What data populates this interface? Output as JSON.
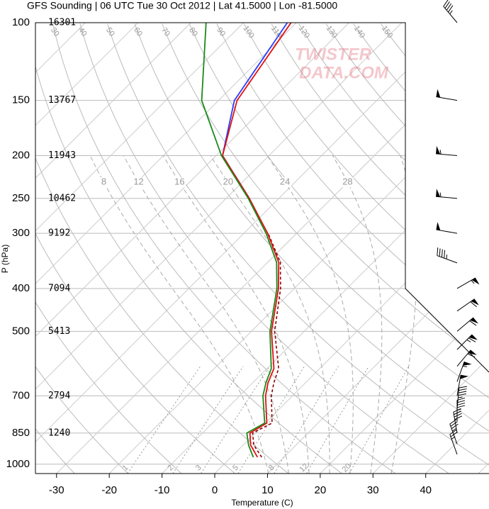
{
  "chart_data": {
    "type": "skewt",
    "title": "GFS Sounding | 06 UTC Tue 30 Oct 2012 | Lat 41.5000 | Lon -81.5000",
    "xlabel": "Temperature (C)",
    "ylabel": "P (hPa)",
    "watermark": [
      "TWISTER",
      "DATA.COM"
    ],
    "xlim": [
      -34,
      52
    ],
    "ylim": [
      1050,
      100
    ],
    "log_y": true,
    "grid": true,
    "xticks": [
      -30,
      -20,
      -10,
      0,
      10,
      20,
      30,
      40
    ],
    "yticks": [
      100,
      150,
      200,
      250,
      300,
      400,
      500,
      700,
      850,
      1000
    ],
    "height_labels": [
      16301,
      13767,
      11943,
      10462,
      9192,
      7094,
      5413,
      2794,
      1240,
      null
    ],
    "isotherms": [
      -110,
      -100,
      -90,
      -80,
      -70,
      -60,
      -50,
      -40,
      -30,
      -20,
      -10,
      0,
      10,
      20,
      30,
      40,
      50
    ],
    "dry_adiabats": [
      -30,
      -20,
      -10,
      0,
      10,
      20,
      30,
      40,
      50,
      60,
      70,
      80,
      90,
      100,
      110,
      120,
      130,
      140,
      150,
      160
    ],
    "moist_adiabats": [
      8,
      12,
      16,
      20,
      24,
      28,
      32
    ],
    "mixing_ratios": [
      1,
      2,
      3,
      5,
      8,
      12,
      20
    ],
    "levels": [
      964,
      905,
      850,
      807,
      700,
      654,
      607,
      500,
      400,
      349,
      300,
      250,
      200,
      150,
      100
    ],
    "series": [
      {
        "color": "#2a3cff",
        "style": "solid",
        "values": [
          null,
          null,
          null,
          null,
          null,
          null,
          null,
          null,
          null,
          null,
          null,
          -45.6,
          -58.8,
          -67.0,
          -71.7
        ]
      },
      {
        "color": "#8b0000",
        "style": "dashed",
        "values": [
          5.8,
          2.0,
          -0.5,
          1.3,
          -4.0,
          -6.0,
          -7.8,
          -15.6,
          -22.6,
          -27.6,
          -35.4,
          null,
          null,
          null,
          null
        ]
      },
      {
        "color": "#e01010",
        "style": "solid",
        "values": [
          5.0,
          1.4,
          -1.0,
          0.3,
          -5.1,
          -7.1,
          -8.7,
          -16.2,
          -23.0,
          -27.9,
          -35.5,
          -45.6,
          -58.8,
          -66.5,
          -71.0
        ]
      },
      {
        "color": "#1a8a1a",
        "style": "solid",
        "values": [
          4.2,
          1.0,
          -1.6,
          -0.1,
          -5.6,
          -7.5,
          -9.2,
          -16.5,
          -23.3,
          -28.3,
          -35.8,
          -45.8,
          -59.0,
          -73.2,
          -87.1
        ]
      }
    ],
    "winds": {
      "pressure": [
        100,
        150,
        200,
        250,
        300,
        350,
        400,
        450,
        500,
        550,
        600,
        650,
        700,
        750,
        800,
        850,
        900,
        950
      ],
      "direction": [
        320,
        280,
        275,
        275,
        280,
        290,
        60,
        55,
        50,
        45,
        40,
        20,
        10,
        5,
        0,
        350,
        340,
        340
      ],
      "speed": [
        45,
        50,
        55,
        55,
        50,
        45,
        55,
        60,
        60,
        65,
        60,
        55,
        50,
        45,
        45,
        40,
        35,
        25
      ]
    }
  }
}
